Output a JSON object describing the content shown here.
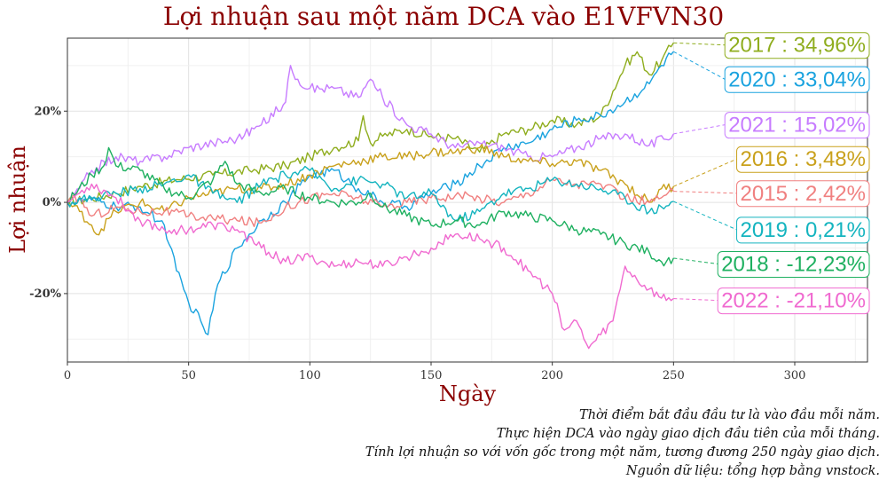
{
  "chart_data": {
    "type": "line",
    "title": "Lợi nhuận sau một năm DCA vào E1VFVN30",
    "xlabel": "Ngày",
    "ylabel": "Lợi nhuận",
    "xlim": [
      0,
      330
    ],
    "ylim": [
      -35,
      36
    ],
    "x_ticks": [
      0,
      50,
      100,
      150,
      200,
      250,
      300
    ],
    "y_ticks": [
      20,
      0,
      -20
    ],
    "y_tick_labels": [
      "20%",
      "0%",
      "-20%"
    ],
    "grid": true,
    "legend": "direct-labels-right",
    "series": [
      {
        "name": "2017",
        "label": "2017 : 34,96%",
        "color": "#8fad1e",
        "label_y": 34.5,
        "points": [
          [
            0,
            0
          ],
          [
            10,
            0.8
          ],
          [
            20,
            2
          ],
          [
            30,
            3.5
          ],
          [
            45,
            5
          ],
          [
            60,
            6
          ],
          [
            75,
            7
          ],
          [
            90,
            8
          ],
          [
            100,
            10
          ],
          [
            110,
            12
          ],
          [
            120,
            13.5
          ],
          [
            122,
            19
          ],
          [
            125,
            13
          ],
          [
            130,
            14.5
          ],
          [
            140,
            16
          ],
          [
            150,
            14.5
          ],
          [
            160,
            14
          ],
          [
            170,
            11
          ],
          [
            180,
            15
          ],
          [
            190,
            16
          ],
          [
            200,
            18
          ],
          [
            210,
            17
          ],
          [
            220,
            19
          ],
          [
            230,
            30
          ],
          [
            235,
            33
          ],
          [
            240,
            28
          ],
          [
            245,
            31
          ],
          [
            250,
            34.96
          ]
        ]
      },
      {
        "name": "2020",
        "label": "2020 : 33,04%",
        "color": "#1aa3df",
        "label_y": 27,
        "points": [
          [
            0,
            0
          ],
          [
            10,
            0.5
          ],
          [
            20,
            -1
          ],
          [
            30,
            -1
          ],
          [
            40,
            -5
          ],
          [
            45,
            -15
          ],
          [
            50,
            -22
          ],
          [
            55,
            -26
          ],
          [
            58,
            -29
          ],
          [
            62,
            -18
          ],
          [
            70,
            -10
          ],
          [
            80,
            -4
          ],
          [
            90,
            0
          ],
          [
            100,
            6
          ],
          [
            110,
            7
          ],
          [
            120,
            3
          ],
          [
            130,
            0
          ],
          [
            140,
            -1
          ],
          [
            150,
            2
          ],
          [
            160,
            4
          ],
          [
            170,
            8
          ],
          [
            180,
            12
          ],
          [
            190,
            13
          ],
          [
            200,
            16
          ],
          [
            210,
            18
          ],
          [
            220,
            19
          ],
          [
            230,
            22
          ],
          [
            240,
            26
          ],
          [
            245,
            30
          ],
          [
            250,
            33.04
          ]
        ]
      },
      {
        "name": "2021",
        "label": "2021 : 15,02%",
        "color": "#c77cff",
        "label_y": 17,
        "points": [
          [
            0,
            0
          ],
          [
            5,
            3
          ],
          [
            10,
            7
          ],
          [
            20,
            10
          ],
          [
            30,
            9
          ],
          [
            40,
            10
          ],
          [
            50,
            12
          ],
          [
            60,
            13
          ],
          [
            70,
            14
          ],
          [
            80,
            17
          ],
          [
            90,
            22
          ],
          [
            92,
            30
          ],
          [
            95,
            27
          ],
          [
            100,
            25
          ],
          [
            110,
            25
          ],
          [
            120,
            23
          ],
          [
            125,
            27
          ],
          [
            130,
            23
          ],
          [
            140,
            17
          ],
          [
            150,
            15
          ],
          [
            160,
            12
          ],
          [
            170,
            13
          ],
          [
            180,
            12
          ],
          [
            190,
            10
          ],
          [
            200,
            10
          ],
          [
            210,
            12
          ],
          [
            220,
            14
          ],
          [
            230,
            15
          ],
          [
            240,
            12.5
          ],
          [
            250,
            15.02
          ]
        ]
      },
      {
        "name": "2016",
        "label": "2016 : 3,48%",
        "color": "#c9a11c",
        "label_y": 9.5,
        "points": [
          [
            0,
            0
          ],
          [
            5,
            -2
          ],
          [
            10,
            -5
          ],
          [
            12,
            -7
          ],
          [
            20,
            -2
          ],
          [
            30,
            0
          ],
          [
            40,
            -2
          ],
          [
            50,
            1
          ],
          [
            60,
            2
          ],
          [
            70,
            3
          ],
          [
            80,
            3
          ],
          [
            90,
            4
          ],
          [
            100,
            6
          ],
          [
            110,
            8
          ],
          [
            120,
            9
          ],
          [
            130,
            10
          ],
          [
            140,
            10
          ],
          [
            150,
            11
          ],
          [
            160,
            11
          ],
          [
            170,
            12
          ],
          [
            180,
            10
          ],
          [
            190,
            9
          ],
          [
            200,
            8.5
          ],
          [
            210,
            9
          ],
          [
            220,
            7
          ],
          [
            230,
            4
          ],
          [
            240,
            0
          ],
          [
            245,
            3
          ],
          [
            250,
            3.48
          ]
        ]
      },
      {
        "name": "2015",
        "label": "2015 : 2,42%",
        "color": "#f08080",
        "label_y": 2,
        "points": [
          [
            0,
            0
          ],
          [
            5,
            1
          ],
          [
            10,
            -3
          ],
          [
            20,
            -1
          ],
          [
            30,
            -2
          ],
          [
            40,
            -2
          ],
          [
            50,
            -3
          ],
          [
            60,
            -3.5
          ],
          [
            70,
            -4
          ],
          [
            80,
            -4.5
          ],
          [
            90,
            -1
          ],
          [
            100,
            1
          ],
          [
            110,
            2
          ],
          [
            120,
            1
          ],
          [
            130,
            -1
          ],
          [
            140,
            0
          ],
          [
            150,
            1
          ],
          [
            160,
            1.5
          ],
          [
            170,
            1
          ],
          [
            180,
            0
          ],
          [
            190,
            2
          ],
          [
            200,
            5
          ],
          [
            210,
            4
          ],
          [
            220,
            4
          ],
          [
            230,
            1
          ],
          [
            240,
            0
          ],
          [
            245,
            1
          ],
          [
            250,
            2.42
          ]
        ]
      },
      {
        "name": "2019",
        "label": "2019 : 0,21%",
        "color": "#14b4bf",
        "label_y": -6,
        "points": [
          [
            0,
            0
          ],
          [
            10,
            1
          ],
          [
            20,
            2
          ],
          [
            30,
            3
          ],
          [
            40,
            4
          ],
          [
            50,
            6
          ],
          [
            60,
            2
          ],
          [
            70,
            0
          ],
          [
            80,
            4
          ],
          [
            90,
            6
          ],
          [
            100,
            7
          ],
          [
            110,
            3
          ],
          [
            120,
            5
          ],
          [
            130,
            4
          ],
          [
            140,
            1
          ],
          [
            150,
            2
          ],
          [
            160,
            -4
          ],
          [
            170,
            -2
          ],
          [
            180,
            2
          ],
          [
            190,
            3
          ],
          [
            200,
            5
          ],
          [
            210,
            4
          ],
          [
            220,
            3
          ],
          [
            230,
            1
          ],
          [
            240,
            -2
          ],
          [
            245,
            -1
          ],
          [
            250,
            0.21
          ]
        ]
      },
      {
        "name": "2018",
        "label": "2018 : -12,23%",
        "color": "#1eb060",
        "label_y": -13.5,
        "points": [
          [
            0,
            0
          ],
          [
            10,
            6
          ],
          [
            15,
            8
          ],
          [
            17,
            12
          ],
          [
            20,
            8
          ],
          [
            30,
            7
          ],
          [
            40,
            3
          ],
          [
            50,
            1
          ],
          [
            60,
            5
          ],
          [
            65,
            9
          ],
          [
            70,
            4
          ],
          [
            80,
            2
          ],
          [
            90,
            3
          ],
          [
            100,
            1
          ],
          [
            110,
            0
          ],
          [
            120,
            0
          ],
          [
            125,
            2
          ],
          [
            130,
            -1
          ],
          [
            140,
            -3
          ],
          [
            150,
            -5
          ],
          [
            160,
            -4
          ],
          [
            170,
            -5
          ],
          [
            180,
            -2
          ],
          [
            190,
            -3
          ],
          [
            200,
            -4
          ],
          [
            210,
            -6
          ],
          [
            220,
            -7
          ],
          [
            230,
            -9
          ],
          [
            240,
            -11
          ],
          [
            245,
            -13
          ],
          [
            250,
            -12.23
          ]
        ]
      },
      {
        "name": "2022",
        "label": "2022 : -21,10%",
        "color": "#f06ad0",
        "label_y": -21.5,
        "points": [
          [
            0,
            0
          ],
          [
            5,
            2
          ],
          [
            10,
            4
          ],
          [
            20,
            1
          ],
          [
            30,
            -4
          ],
          [
            40,
            -6
          ],
          [
            50,
            -6
          ],
          [
            60,
            -5
          ],
          [
            70,
            -6
          ],
          [
            80,
            -10
          ],
          [
            90,
            -13
          ],
          [
            100,
            -12
          ],
          [
            110,
            -14
          ],
          [
            120,
            -13
          ],
          [
            130,
            -14
          ],
          [
            140,
            -12
          ],
          [
            150,
            -10
          ],
          [
            160,
            -7
          ],
          [
            170,
            -8
          ],
          [
            180,
            -10
          ],
          [
            190,
            -15
          ],
          [
            200,
            -20
          ],
          [
            205,
            -28
          ],
          [
            210,
            -26
          ],
          [
            215,
            -32
          ],
          [
            220,
            -29
          ],
          [
            225,
            -26
          ],
          [
            230,
            -14
          ],
          [
            235,
            -17
          ],
          [
            240,
            -19
          ],
          [
            245,
            -21
          ],
          [
            250,
            -21.1
          ]
        ]
      }
    ]
  },
  "caption": [
    "Thời điểm bắt đầu đầu tư là vào đầu mỗi năm.",
    "Thực hiện DCA vào ngày giao dịch đầu tiên của mỗi tháng.",
    "Tính lợi nhuận so với vốn gốc trong một năm, tương đương 250 ngày giao dịch.",
    "Nguồn dữ liệu: tổng hợp bằng vnstock."
  ]
}
